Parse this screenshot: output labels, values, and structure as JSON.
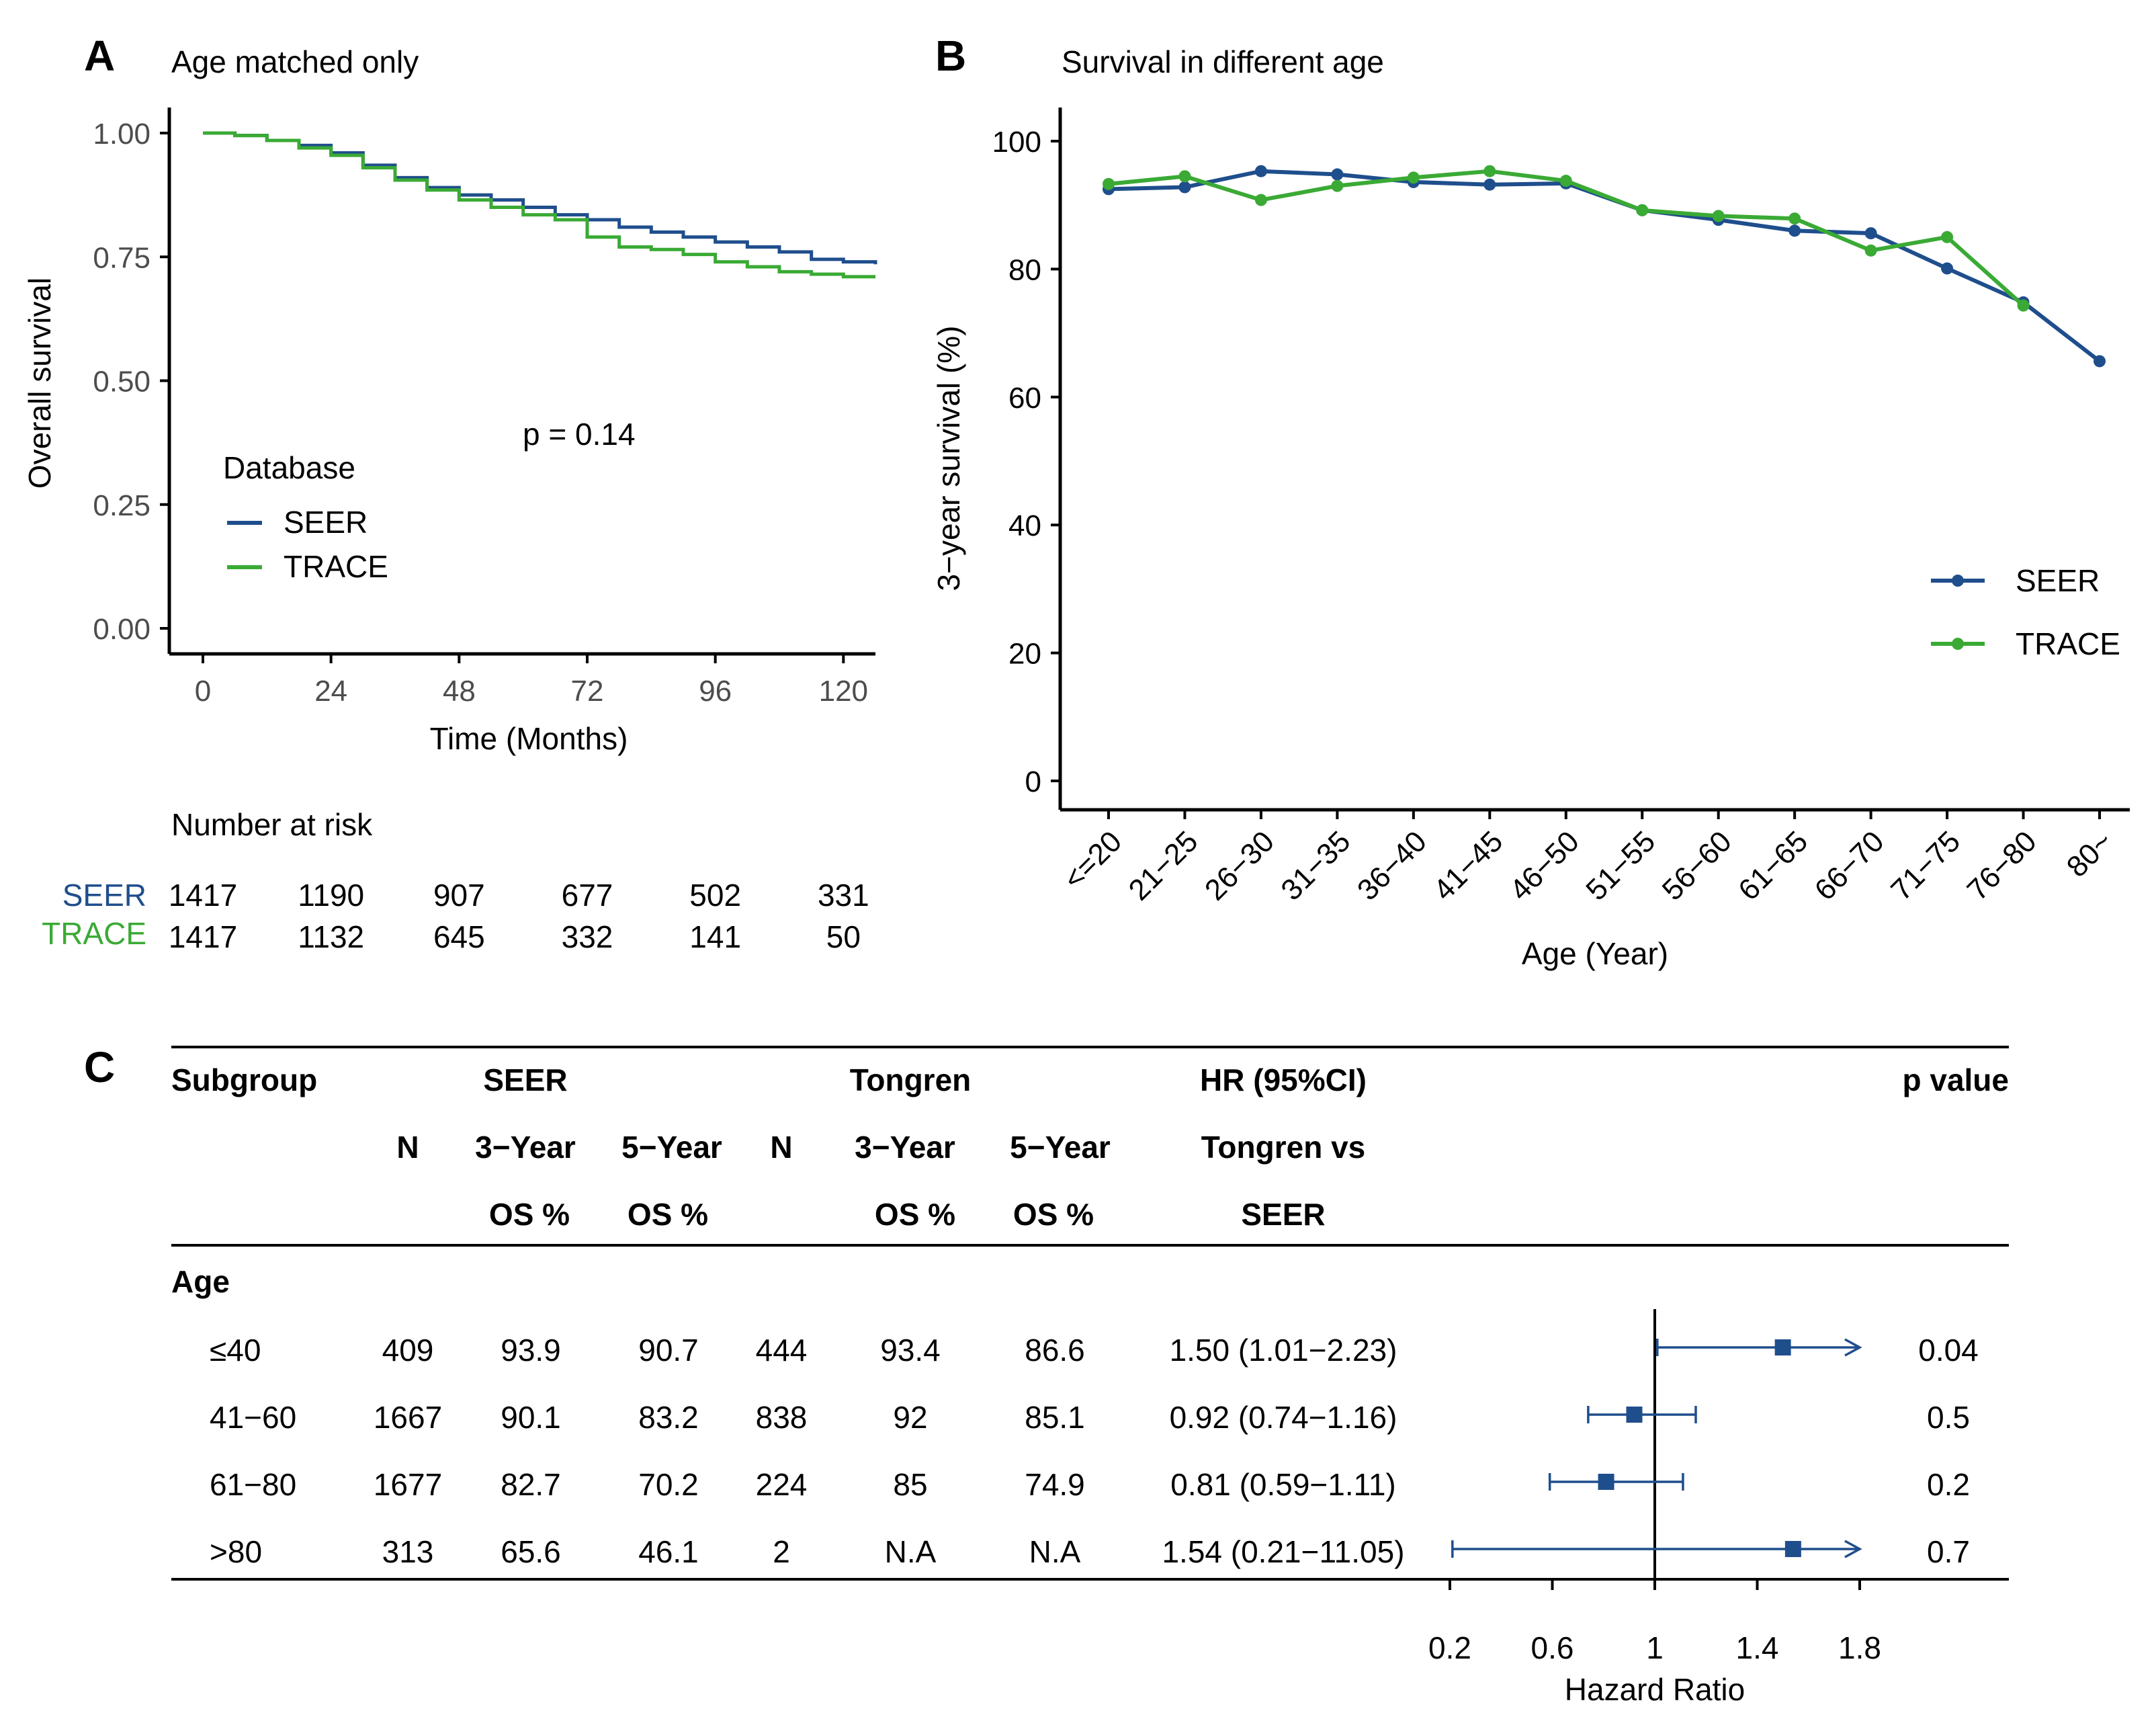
{
  "colors": {
    "seer": "#1f4e8c",
    "trace": "#3aaa35",
    "axis": "#000000",
    "tick_text": "#4d4d4d"
  },
  "chart_data": [
    {
      "id": "A",
      "type": "line",
      "panel_letter": "A",
      "title": "Age matched only",
      "xlabel": "Time (Months)",
      "ylabel": "Overall survival",
      "xlim": [
        0,
        126
      ],
      "ylim": [
        0,
        1.05
      ],
      "xticks": [
        0,
        24,
        48,
        72,
        96,
        120
      ],
      "xtick_labels": [
        "0",
        "24",
        "48",
        "72",
        "96",
        "120"
      ],
      "yticks": [
        0,
        0.25,
        0.5,
        0.75,
        1.0
      ],
      "ytick_labels": [
        "0.00",
        "0.25",
        "0.50",
        "0.75",
        "1.00"
      ],
      "annotation": "p = 0.14",
      "legend_title": "Database",
      "series": [
        {
          "name": "SEER",
          "color": "#1f4e8c",
          "x": [
            0,
            6,
            12,
            18,
            24,
            30,
            36,
            42,
            48,
            54,
            60,
            66,
            72,
            78,
            84,
            90,
            96,
            102,
            108,
            114,
            120,
            126
          ],
          "y": [
            1.0,
            0.995,
            0.985,
            0.975,
            0.96,
            0.935,
            0.91,
            0.89,
            0.875,
            0.865,
            0.85,
            0.835,
            0.825,
            0.81,
            0.8,
            0.79,
            0.78,
            0.77,
            0.76,
            0.745,
            0.74,
            0.735
          ]
        },
        {
          "name": "TRACE",
          "color": "#3aaa35",
          "x": [
            0,
            6,
            12,
            18,
            24,
            30,
            36,
            42,
            48,
            54,
            60,
            66,
            72,
            78,
            84,
            90,
            96,
            102,
            108,
            114,
            120,
            126
          ],
          "y": [
            1.0,
            0.995,
            0.985,
            0.97,
            0.955,
            0.93,
            0.905,
            0.885,
            0.865,
            0.85,
            0.835,
            0.825,
            0.79,
            0.77,
            0.765,
            0.755,
            0.74,
            0.73,
            0.72,
            0.715,
            0.71,
            0.71
          ]
        }
      ],
      "risk_table": {
        "title": "Number at risk",
        "rows": [
          {
            "name": "SEER",
            "values": [
              "1417",
              "1190",
              "907",
              "677",
              "502",
              "331"
            ]
          },
          {
            "name": "TRACE",
            "values": [
              "1417",
              "1132",
              "645",
              "332",
              "141",
              "50"
            ]
          }
        ]
      }
    },
    {
      "id": "B",
      "type": "line",
      "panel_letter": "B",
      "title": "Survival in different age",
      "xlabel": "Age (Year)",
      "ylabel": "3−year survival (%)",
      "ylim": [
        0,
        100
      ],
      "yticks": [
        0,
        20,
        40,
        60,
        80,
        100
      ],
      "ytick_labels": [
        "0",
        "20",
        "40",
        "60",
        "80",
        "100"
      ],
      "categories": [
        "<=20",
        "21−25",
        "26−30",
        "31−35",
        "36−40",
        "41−45",
        "46−50",
        "51−55",
        "56−60",
        "61−65",
        "66−70",
        "71−75",
        "76−80",
        "80~"
      ],
      "series": [
        {
          "name": "SEER",
          "color": "#1f4e8c",
          "values": [
            92.5,
            92.8,
            95.3,
            94.8,
            93.6,
            93.2,
            93.4,
            89.2,
            87.7,
            86.0,
            85.6,
            80.1,
            74.8,
            65.6
          ]
        },
        {
          "name": "TRACE",
          "color": "#3aaa35",
          "values": [
            93.3,
            94.5,
            90.8,
            93.0,
            94.3,
            95.3,
            93.8,
            89.2,
            88.3,
            87.9,
            82.9,
            85.0,
            74.3,
            null
          ]
        }
      ]
    },
    {
      "id": "C",
      "type": "table",
      "panel_letter": "C",
      "header_row1": {
        "subgroup": "Subgroup",
        "seer": "SEER",
        "tongren": "Tongren",
        "hr": "HR (95%CI)",
        "p": "p value"
      },
      "header_row2": {
        "n1": "N",
        "seer3": "3−Year",
        "seer5": "5−Year",
        "n2": "N",
        "t3": "3−Year",
        "t5": "5−Year",
        "hr": "Tongren vs"
      },
      "header_row3": {
        "seer3": "OS %",
        "seer5": "OS %",
        "t3": "OS %",
        "t5": "OS %",
        "hr": "SEER"
      },
      "section_label": "Age",
      "rows": [
        {
          "label": "≤40",
          "n_seer": "409",
          "seer3": "93.9",
          "seer5": "90.7",
          "n_tongren": "444",
          "t3": "93.4",
          "t5": "86.6",
          "hr_text": "1.50 (1.01−2.23)",
          "p": "0.04",
          "hr": 1.5,
          "lo": 1.01,
          "hi": 2.23
        },
        {
          "label": "41−60",
          "n_seer": "1667",
          "seer3": "90.1",
          "seer5": "83.2",
          "n_tongren": "838",
          "t3": "92",
          "t5": "85.1",
          "hr_text": "0.92 (0.74−1.16)",
          "p": "0.5",
          "hr": 0.92,
          "lo": 0.74,
          "hi": 1.16
        },
        {
          "label": "61−80",
          "n_seer": "1677",
          "seer3": "82.7",
          "seer5": "70.2",
          "n_tongren": "224",
          "t3": "85",
          "t5": "74.9",
          "hr_text": "0.81 (0.59−1.11)",
          "p": "0.2",
          "hr": 0.81,
          "lo": 0.59,
          "hi": 1.11
        },
        {
          "label": ">80",
          "n_seer": "313",
          "seer3": "65.6",
          "seer5": "46.1",
          "n_tongren": "2",
          "t3": "N.A",
          "t5": "N.A",
          "hr_text": "1.54 (0.21−11.05)",
          "p": "0.7",
          "hr": 1.54,
          "lo": 0.21,
          "hi": 11.05
        }
      ],
      "forest_axis": {
        "xlabel": "Hazard Ratio",
        "xlim": [
          0.2,
          1.8
        ],
        "reference": 1,
        "ticks": [
          0.2,
          0.6,
          1,
          1.4,
          1.8
        ],
        "tick_labels": [
          "0.2",
          "0.6",
          "1",
          "1.4",
          "1.8"
        ]
      }
    }
  ]
}
